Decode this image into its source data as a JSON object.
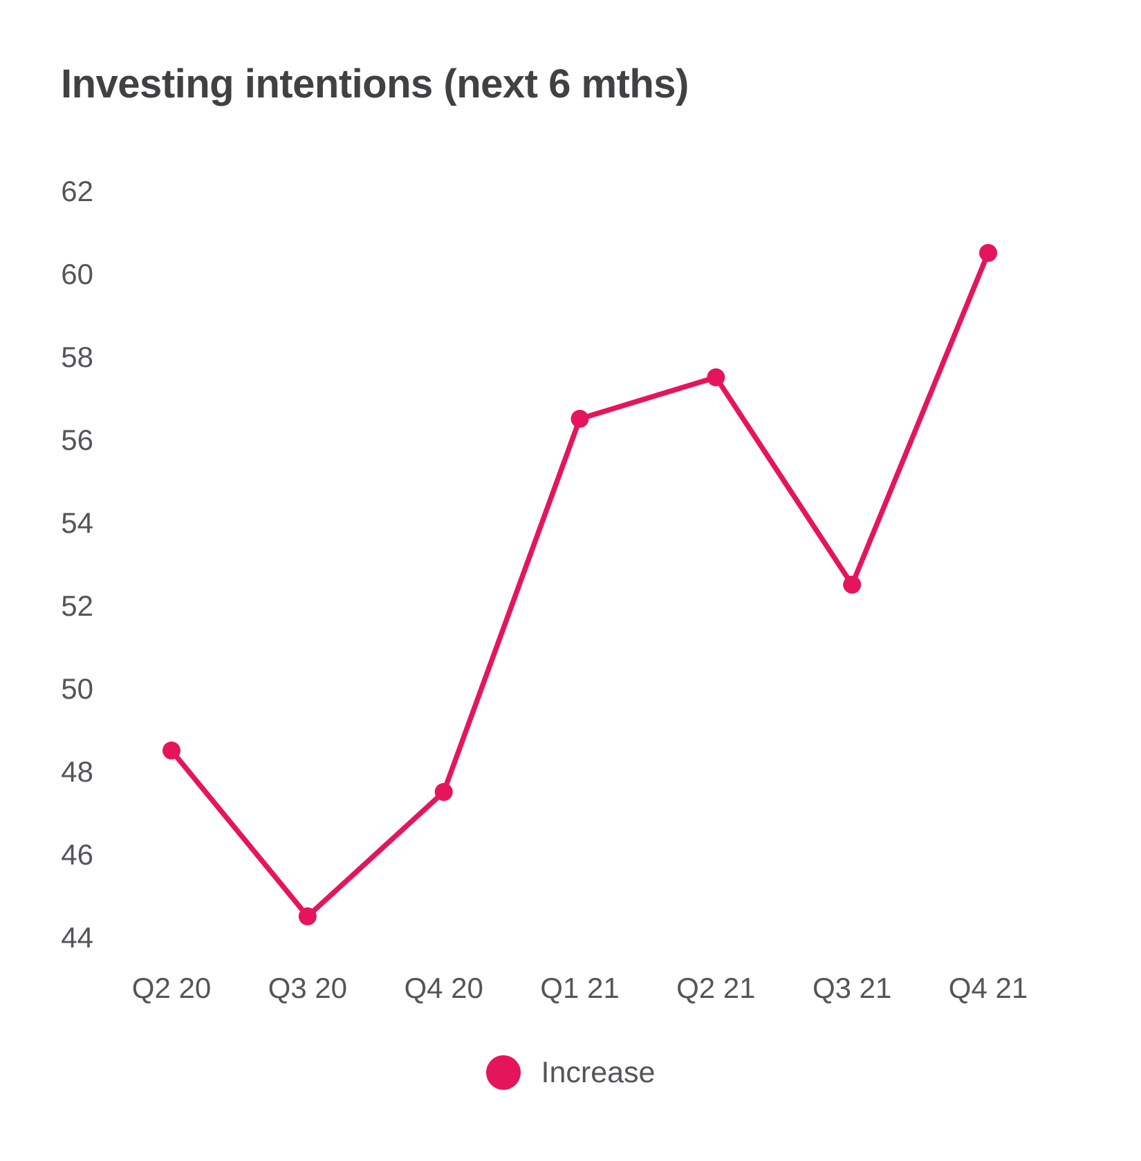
{
  "title": "Investing intentions (next 6 mths)",
  "legend": {
    "label": "Increase",
    "marker_color": "#e5155c"
  },
  "colors": {
    "line": "#e5155c",
    "title_text": "#414042",
    "axis_text": "#54555a",
    "background": "#ffffff"
  },
  "chart_data": {
    "type": "line",
    "title": "Investing intentions (next 6 mths)",
    "categories": [
      "Q2 20",
      "Q3 20",
      "Q4 20",
      "Q1 21",
      "Q2 21",
      "Q3 21",
      "Q4 21"
    ],
    "series": [
      {
        "name": "Increase",
        "color": "#e5155c",
        "marker": "circle",
        "values": [
          48.5,
          44.5,
          47.5,
          56.5,
          57.5,
          52.5,
          60.5
        ]
      }
    ],
    "xlabel": "",
    "ylabel": "",
    "yticks": [
      44,
      46,
      48,
      50,
      52,
      54,
      56,
      58,
      60,
      62
    ],
    "ylim": [
      43,
      63
    ],
    "grid": false,
    "legend_position": "bottom-center"
  }
}
